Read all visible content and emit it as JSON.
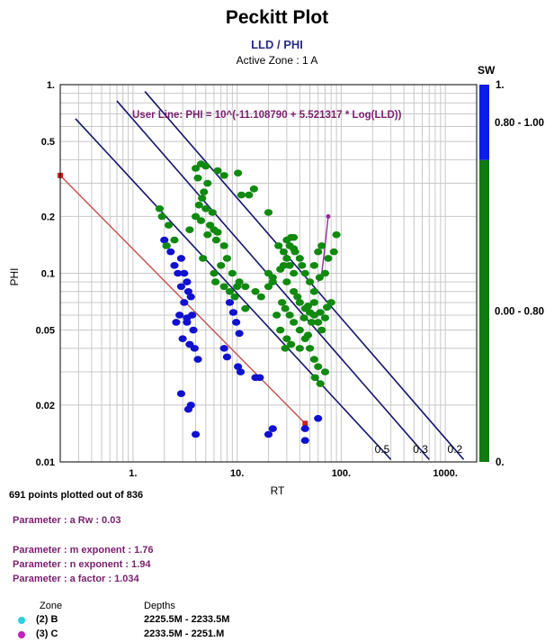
{
  "header": {
    "title": "Peckitt Plot",
    "subtitle": "LLD / PHI",
    "active_zone": "Active Zone : 1  A"
  },
  "chart_data": {
    "type": "scatter",
    "xscale": "log",
    "yscale": "log",
    "xlim": [
      0.2,
      2000
    ],
    "ylim": [
      0.01,
      1
    ],
    "xlabel": "RT",
    "ylabel": "PHI",
    "x_ticks": [
      "1.",
      "10.",
      "100.",
      "1000."
    ],
    "y_ticks": [
      "1.",
      "0.5",
      "0.2",
      "0.1",
      "0.05",
      "0.02",
      "0.01"
    ],
    "grid": true,
    "user_line_label": "User Line: PHI = 10^(-11.108790 + 5.521317 * Log(LLD))",
    "sw_lines": [
      {
        "label": "0.5",
        "points": [
          [
            0.28,
            0.66
          ],
          [
            300,
            0.0103
          ]
        ]
      },
      {
        "label": "0.3",
        "points": [
          [
            0.7,
            0.82
          ],
          [
            700,
            0.0103
          ]
        ]
      },
      {
        "label": "0.2",
        "points": [
          [
            1.3,
            0.92
          ],
          [
            1500,
            0.0103
          ]
        ]
      }
    ],
    "red_line": {
      "points": [
        [
          0.2,
          0.33
        ],
        [
          45,
          0.016
        ]
      ]
    },
    "purple_line": {
      "points": [
        [
          60,
          0.09
        ],
        [
          65,
          0.1
        ],
        [
          70,
          0.14
        ],
        [
          75,
          0.2
        ]
      ]
    },
    "series": [
      {
        "name": "(2) B",
        "color": "#1010d0",
        "points": [
          [
            2.0,
            0.15
          ],
          [
            2.1,
            0.14
          ],
          [
            2.3,
            0.13
          ],
          [
            2.5,
            0.11
          ],
          [
            2.7,
            0.1
          ],
          [
            2.9,
            0.12
          ],
          [
            3.1,
            0.1
          ],
          [
            3.3,
            0.09
          ],
          [
            3.4,
            0.08
          ],
          [
            3.6,
            0.075
          ],
          [
            2.9,
            0.085
          ],
          [
            3.1,
            0.07
          ],
          [
            2.8,
            0.06
          ],
          [
            3.3,
            0.058
          ],
          [
            3.8,
            0.05
          ],
          [
            2.6,
            0.055
          ],
          [
            3.0,
            0.045
          ],
          [
            3.5,
            0.042
          ],
          [
            3.9,
            0.04
          ],
          [
            4.2,
            0.035
          ],
          [
            3.3,
            0.055
          ],
          [
            3.7,
            0.06
          ],
          [
            8.5,
            0.07
          ],
          [
            9.2,
            0.062
          ],
          [
            9.8,
            0.055
          ],
          [
            10.5,
            0.048
          ],
          [
            10.2,
            0.032
          ],
          [
            10.8,
            0.03
          ],
          [
            7.5,
            0.04
          ],
          [
            8.0,
            0.036
          ],
          [
            15.0,
            0.028
          ],
          [
            16.5,
            0.028
          ],
          [
            2.9,
            0.023
          ],
          [
            3.4,
            0.019
          ],
          [
            3.6,
            0.02
          ],
          [
            4.0,
            0.014
          ],
          [
            20.0,
            0.014
          ],
          [
            22.0,
            0.015
          ],
          [
            45.0,
            0.013
          ],
          [
            45.0,
            0.015
          ],
          [
            60.0,
            0.017
          ]
        ]
      },
      {
        "name": "(3) C",
        "color": "#0f8a0f",
        "points": [
          [
            4.5,
            0.38
          ],
          [
            4.0,
            0.36
          ],
          [
            5.0,
            0.37
          ],
          [
            6.5,
            0.35
          ],
          [
            7.5,
            0.33
          ],
          [
            4.2,
            0.32
          ],
          [
            5.2,
            0.3
          ],
          [
            4.8,
            0.27
          ],
          [
            4.6,
            0.25
          ],
          [
            4.3,
            0.23
          ],
          [
            5.0,
            0.22
          ],
          [
            5.8,
            0.21
          ],
          [
            4.0,
            0.2
          ],
          [
            4.5,
            0.19
          ],
          [
            5.5,
            0.18
          ],
          [
            6.0,
            0.17
          ],
          [
            6.5,
            0.165
          ],
          [
            3.5,
            0.17
          ],
          [
            6.3,
            0.15
          ],
          [
            7.5,
            0.14
          ],
          [
            8.0,
            0.12
          ],
          [
            7.0,
            0.11
          ],
          [
            9.0,
            0.1
          ],
          [
            10.5,
            0.09
          ],
          [
            12.0,
            0.085
          ],
          [
            5.2,
            0.16
          ],
          [
            13.0,
            0.26
          ],
          [
            10.2,
            0.34
          ],
          [
            11.0,
            0.26
          ],
          [
            14.5,
            0.28
          ],
          [
            20.0,
            0.21
          ],
          [
            1.8,
            0.22
          ],
          [
            1.9,
            0.2
          ],
          [
            2.2,
            0.18
          ],
          [
            2.5,
            0.15
          ],
          [
            2.1,
            0.14
          ],
          [
            4.7,
            0.12
          ],
          [
            6.0,
            0.1
          ],
          [
            6.2,
            0.09
          ],
          [
            7.5,
            0.085
          ],
          [
            8.5,
            0.08
          ],
          [
            9.5,
            0.075
          ],
          [
            10.0,
            0.085
          ],
          [
            12.0,
            0.065
          ],
          [
            15.0,
            0.08
          ],
          [
            17.0,
            0.075
          ],
          [
            20.0,
            0.085
          ],
          [
            22.0,
            0.09
          ],
          [
            25.0,
            0.14
          ],
          [
            28.0,
            0.13
          ],
          [
            30.0,
            0.12
          ],
          [
            32.0,
            0.11
          ],
          [
            35.0,
            0.1
          ],
          [
            28.0,
            0.11
          ],
          [
            26.0,
            0.105
          ],
          [
            30.0,
            0.15
          ],
          [
            33.0,
            0.155
          ],
          [
            32.0,
            0.14
          ],
          [
            35.0,
            0.135
          ],
          [
            40.0,
            0.12
          ],
          [
            42.0,
            0.11
          ],
          [
            45.0,
            0.1
          ],
          [
            50.0,
            0.09
          ],
          [
            55.0,
            0.08
          ],
          [
            30.0,
            0.09
          ],
          [
            35.0,
            0.08
          ],
          [
            38.0,
            0.075
          ],
          [
            40.0,
            0.07
          ],
          [
            45.0,
            0.065
          ],
          [
            50.0,
            0.062
          ],
          [
            55.0,
            0.06
          ],
          [
            60.0,
            0.055
          ],
          [
            65.0,
            0.05
          ],
          [
            27.0,
            0.07
          ],
          [
            29.0,
            0.065
          ],
          [
            32.0,
            0.06
          ],
          [
            35.0,
            0.055
          ],
          [
            40.0,
            0.05
          ],
          [
            45.0,
            0.045
          ],
          [
            50.0,
            0.04
          ],
          [
            55.0,
            0.035
          ],
          [
            60.0,
            0.032
          ],
          [
            70.0,
            0.03
          ],
          [
            33.0,
            0.042
          ],
          [
            40.0,
            0.04
          ],
          [
            48.0,
            0.047
          ],
          [
            52.0,
            0.055
          ],
          [
            55.0,
            0.07
          ],
          [
            63.0,
            0.062
          ],
          [
            70.0,
            0.058
          ],
          [
            73.0,
            0.066
          ],
          [
            80.0,
            0.07
          ],
          [
            60.0,
            0.13
          ],
          [
            65.0,
            0.14
          ],
          [
            75.0,
            0.12
          ],
          [
            85.0,
            0.13
          ],
          [
            90.0,
            0.16
          ],
          [
            70.0,
            0.1
          ],
          [
            55.0,
            0.11
          ],
          [
            62.0,
            0.095
          ],
          [
            63.0,
            0.026
          ],
          [
            56.0,
            0.028
          ],
          [
            35.0,
            0.155
          ],
          [
            36.0,
            0.13
          ],
          [
            20.0,
            0.1
          ],
          [
            22.0,
            0.095
          ],
          [
            24.0,
            0.06
          ],
          [
            26.0,
            0.05
          ],
          [
            30.0,
            0.045
          ],
          [
            29.0,
            0.04
          ],
          [
            44.0,
            0.058
          ],
          [
            48.0,
            0.067
          ]
        ]
      }
    ],
    "colorbar": {
      "title": "SW",
      "top_label": "1.",
      "bottom_label": "0.",
      "bands": [
        {
          "label": "0.80 - 1.00",
          "from": 0.8,
          "to": 1.0,
          "color": "#0b1de8"
        },
        {
          "label": "0.00 - 0.80",
          "from": 0.0,
          "to": 0.8,
          "color": "#0f7a0f"
        }
      ]
    }
  },
  "stats": {
    "points_text": "691 points plotted out of 836"
  },
  "parameters": [
    {
      "text": "Parameter : a Rw : 0.03"
    },
    {
      "text": "Parameter : m exponent : 1.76"
    },
    {
      "text": "Parameter : n exponent : 1.94"
    },
    {
      "text": "Parameter : a factor : 1.034"
    }
  ],
  "legend_table": {
    "zone_header": "Zone",
    "depths_header": "Depths",
    "rows": [
      {
        "zone": "(2) B",
        "depths": "2225.5M - 2233.5M",
        "color": "#2fd0e0"
      },
      {
        "zone": "(3) C",
        "depths": "2233.5M - 2251.M",
        "color": "#c020c0"
      }
    ]
  }
}
